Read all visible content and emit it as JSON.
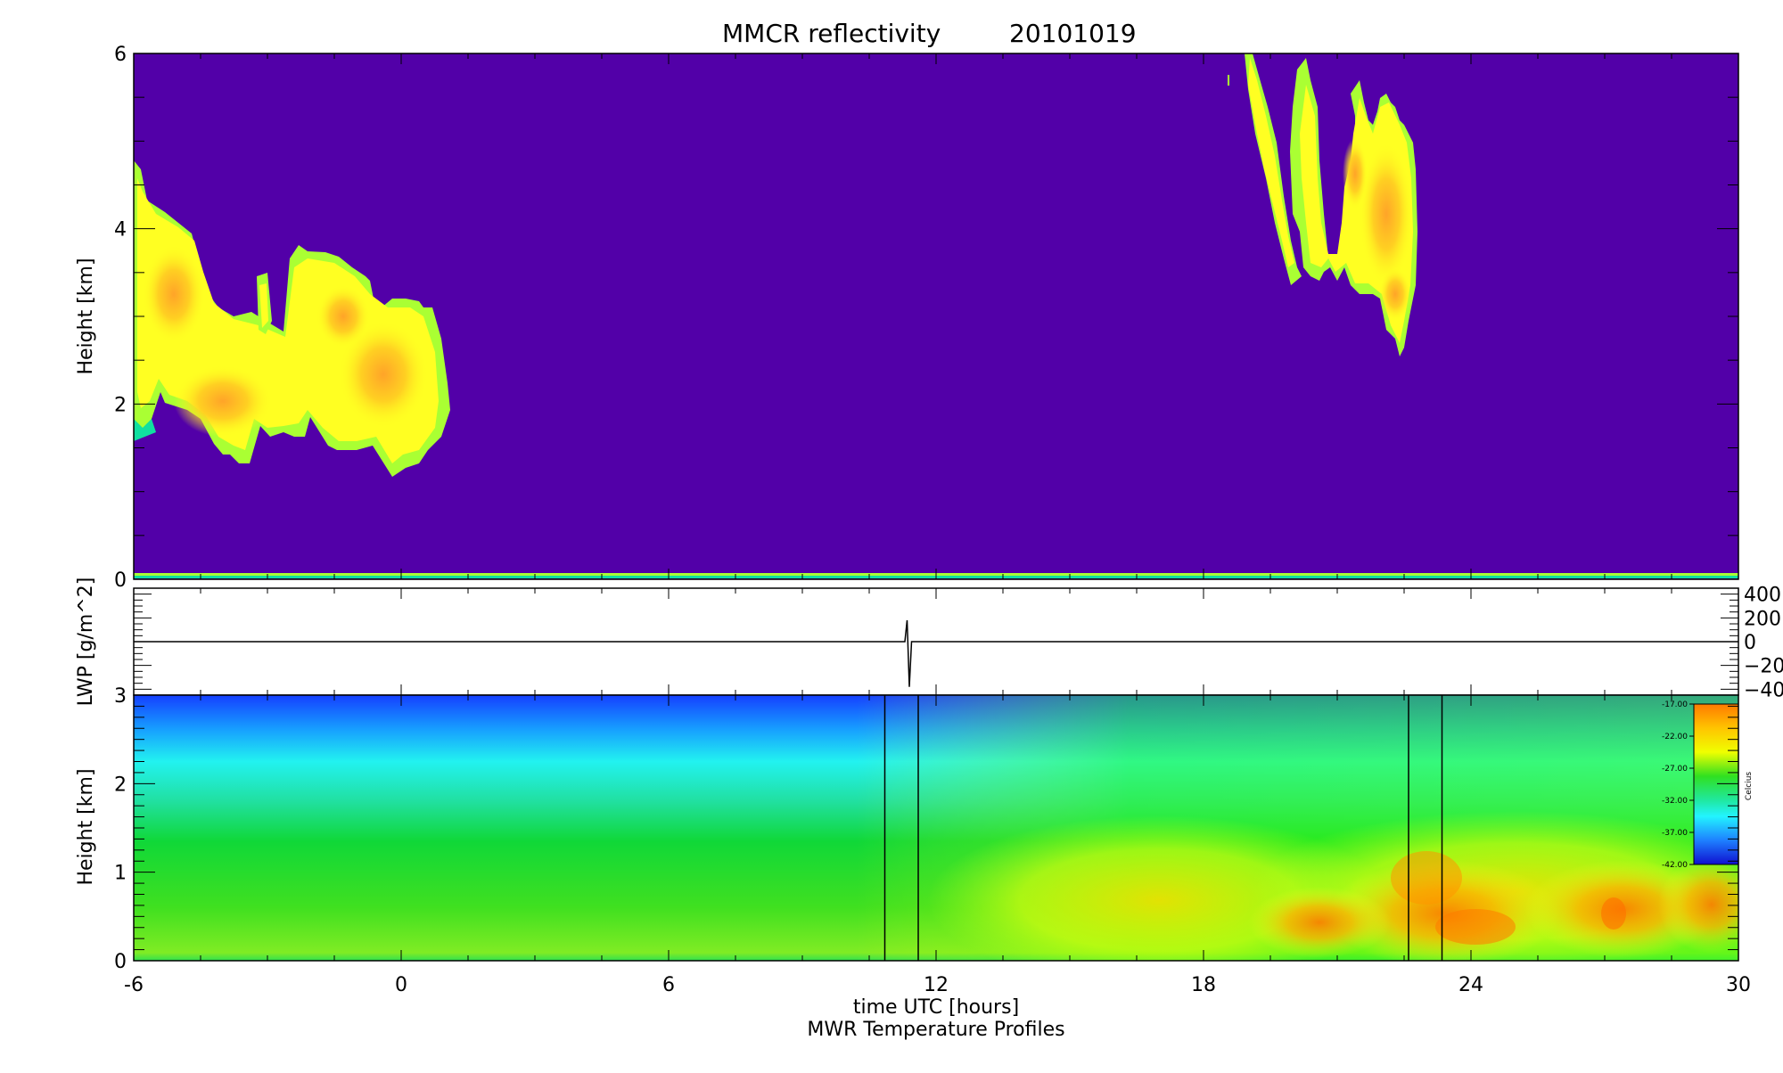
{
  "chart_data": [
    {
      "type": "heatmap",
      "title": "MMCR reflectivity",
      "date": "20101019",
      "ylabel": "Height [km]",
      "xlim": [
        -6,
        30
      ],
      "ylim": [
        0,
        6
      ],
      "yticks": [
        0,
        2,
        4,
        6
      ],
      "colors": {
        "background": "#5200a8",
        "edge": "#aaff33",
        "mid": "#ffff22",
        "core": "#ffcc22",
        "peak": "#ffa428"
      },
      "cloud_regions": [
        {
          "name": "early cloud band",
          "x_range": [
            -6,
            1.1
          ],
          "y_range": [
            1.25,
            4.8
          ]
        },
        {
          "name": "late cloud band",
          "x_range": [
            18.9,
            22.7
          ],
          "y_range": [
            2.6,
            6.0
          ]
        },
        {
          "name": "surface clutter",
          "x_range": [
            -6,
            30
          ],
          "y_range": [
            0,
            0.05
          ]
        }
      ]
    },
    {
      "type": "line",
      "ylabel": "LWP [g/m^2]",
      "yticks": [
        "400",
        "200",
        "0",
        "−20…",
        "−40…"
      ],
      "ylim": [
        -450,
        450
      ],
      "series": [
        {
          "x": [
            -6,
            11.3,
            11.35,
            11.4,
            11.45,
            11.5,
            30
          ],
          "y": [
            0,
            0,
            180,
            -380,
            0,
            0,
            0
          ]
        }
      ]
    },
    {
      "type": "heatmap",
      "ylabel": "Height [km]",
      "xlabel": "time UTC [hours]",
      "subtitle": "MWR Temperature Profiles",
      "xlim": [
        -6,
        30
      ],
      "ylim": [
        0,
        3
      ],
      "xticks": [
        -6,
        0,
        6,
        12,
        18,
        24,
        30
      ],
      "yticks": [
        0,
        1,
        2,
        3
      ],
      "gap_lines_x": [
        10.85,
        11.6,
        22.6,
        23.35
      ],
      "colorbar": {
        "label": "Celcius",
        "ticks": [
          "-17.00",
          "-22.00",
          "-27.00",
          "-32.00",
          "-37.00",
          "-42.00"
        ],
        "range": [
          -42,
          -17
        ]
      }
    }
  ]
}
